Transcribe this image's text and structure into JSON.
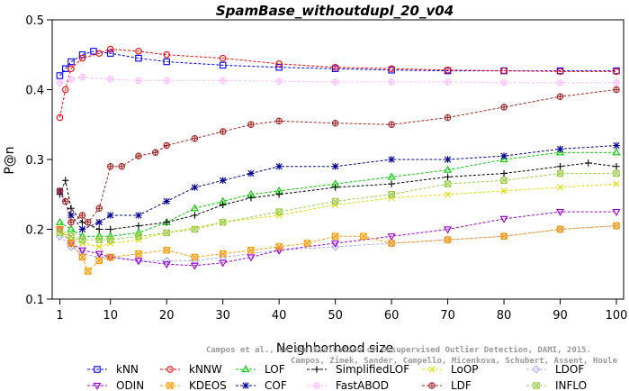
{
  "chart_data": {
    "type": "line",
    "title": "SpamBase_withoutdupl_20_v04",
    "xlabel": "Neighborhood size",
    "ylabel": "P@n",
    "xlim": [
      1,
      100
    ],
    "ylim": [
      0.1,
      0.5
    ],
    "xticks": [
      "1",
      "10",
      "20",
      "30",
      "40",
      "50",
      "60",
      "70",
      "80",
      "90",
      "100"
    ],
    "yticks": [
      "0.1",
      "0.2",
      "0.3",
      "0.4",
      "0.5"
    ],
    "legend_position": "bottom",
    "credit": [
      "Campos et al., On the Evaluation of Unsupervised Outlier Detection, DAMI, 2015.",
      "Campos, Zimek, Sander, Campello, Micenkova, Schubert, Assent, Houle"
    ],
    "series": [
      {
        "name": "kNN",
        "color": "#0000ff",
        "marker": "square",
        "dashed": true,
        "points": [
          [
            1,
            0.42
          ],
          [
            2,
            0.43
          ],
          [
            3,
            0.44
          ],
          [
            5,
            0.45
          ],
          [
            7,
            0.455
          ],
          [
            10,
            0.452
          ],
          [
            15,
            0.445
          ],
          [
            20,
            0.44
          ],
          [
            30,
            0.435
          ],
          [
            40,
            0.432
          ],
          [
            50,
            0.43
          ],
          [
            60,
            0.428
          ],
          [
            70,
            0.427
          ],
          [
            80,
            0.427
          ],
          [
            90,
            0.427
          ],
          [
            100,
            0.427
          ]
        ]
      },
      {
        "name": "kNNW",
        "color": "#ff0000",
        "marker": "circle",
        "dashed": true,
        "points": [
          [
            1,
            0.36
          ],
          [
            2,
            0.4
          ],
          [
            3,
            0.43
          ],
          [
            5,
            0.445
          ],
          [
            8,
            0.452
          ],
          [
            10,
            0.458
          ],
          [
            15,
            0.455
          ],
          [
            20,
            0.45
          ],
          [
            30,
            0.445
          ],
          [
            40,
            0.437
          ],
          [
            50,
            0.432
          ],
          [
            60,
            0.43
          ],
          [
            70,
            0.428
          ],
          [
            80,
            0.427
          ],
          [
            90,
            0.426
          ],
          [
            100,
            0.426
          ]
        ]
      },
      {
        "name": "LOF",
        "color": "#00cc00",
        "marker": "triangle",
        "dashed": true,
        "points": [
          [
            1,
            0.21
          ],
          [
            3,
            0.2
          ],
          [
            5,
            0.19
          ],
          [
            8,
            0.19
          ],
          [
            10,
            0.19
          ],
          [
            15,
            0.195
          ],
          [
            20,
            0.21
          ],
          [
            25,
            0.23
          ],
          [
            30,
            0.24
          ],
          [
            35,
            0.25
          ],
          [
            40,
            0.255
          ],
          [
            50,
            0.265
          ],
          [
            60,
            0.275
          ],
          [
            70,
            0.285
          ],
          [
            80,
            0.3
          ],
          [
            90,
            0.31
          ],
          [
            100,
            0.31
          ]
        ]
      },
      {
        "name": "SimplifiedLOF",
        "color": "#000000",
        "marker": "plus",
        "dashed": true,
        "points": [
          [
            1,
            0.25
          ],
          [
            2,
            0.27
          ],
          [
            3,
            0.23
          ],
          [
            5,
            0.21
          ],
          [
            8,
            0.2
          ],
          [
            10,
            0.2
          ],
          [
            15,
            0.205
          ],
          [
            20,
            0.21
          ],
          [
            25,
            0.22
          ],
          [
            30,
            0.235
          ],
          [
            35,
            0.245
          ],
          [
            40,
            0.25
          ],
          [
            50,
            0.26
          ],
          [
            60,
            0.265
          ],
          [
            70,
            0.275
          ],
          [
            80,
            0.28
          ],
          [
            90,
            0.29
          ],
          [
            95,
            0.295
          ],
          [
            100,
            0.29
          ]
        ]
      },
      {
        "name": "LoOP",
        "color": "#dddd00",
        "marker": "x",
        "dashed": true,
        "points": [
          [
            1,
            0.2
          ],
          [
            3,
            0.19
          ],
          [
            5,
            0.18
          ],
          [
            8,
            0.175
          ],
          [
            10,
            0.18
          ],
          [
            15,
            0.185
          ],
          [
            20,
            0.195
          ],
          [
            30,
            0.21
          ],
          [
            40,
            0.22
          ],
          [
            50,
            0.235
          ],
          [
            60,
            0.245
          ],
          [
            70,
            0.25
          ],
          [
            80,
            0.255
          ],
          [
            90,
            0.26
          ],
          [
            100,
            0.265
          ]
        ]
      },
      {
        "name": "LDOF",
        "color": "#aaaaff",
        "marker": "diamond",
        "dashed": true,
        "points": [
          [
            1,
            0.19
          ],
          [
            3,
            0.175
          ],
          [
            5,
            0.165
          ],
          [
            8,
            0.16
          ],
          [
            10,
            0.16
          ],
          [
            15,
            0.155
          ],
          [
            20,
            0.155
          ],
          [
            25,
            0.155
          ],
          [
            30,
            0.16
          ],
          [
            40,
            0.17
          ],
          [
            50,
            0.175
          ],
          [
            60,
            0.18
          ],
          [
            70,
            0.185
          ],
          [
            80,
            0.19
          ],
          [
            90,
            0.2
          ],
          [
            100,
            0.205
          ]
        ]
      },
      {
        "name": "ODIN",
        "color": "#9900cc",
        "marker": "triangle-down",
        "dashed": true,
        "points": [
          [
            1,
            0.2
          ],
          [
            3,
            0.18
          ],
          [
            5,
            0.17
          ],
          [
            8,
            0.165
          ],
          [
            10,
            0.16
          ],
          [
            15,
            0.155
          ],
          [
            20,
            0.15
          ],
          [
            25,
            0.148
          ],
          [
            30,
            0.152
          ],
          [
            35,
            0.16
          ],
          [
            40,
            0.17
          ],
          [
            50,
            0.18
          ],
          [
            60,
            0.19
          ],
          [
            70,
            0.2
          ],
          [
            80,
            0.215
          ],
          [
            90,
            0.225
          ],
          [
            100,
            0.225
          ]
        ]
      },
      {
        "name": "KDEOS",
        "color": "#ff9900",
        "marker": "square-x",
        "dashed": true,
        "points": [
          [
            1,
            0.2
          ],
          [
            3,
            0.18
          ],
          [
            5,
            0.16
          ],
          [
            6,
            0.14
          ],
          [
            8,
            0.155
          ],
          [
            10,
            0.16
          ],
          [
            15,
            0.165
          ],
          [
            20,
            0.17
          ],
          [
            25,
            0.16
          ],
          [
            30,
            0.165
          ],
          [
            35,
            0.17
          ],
          [
            40,
            0.175
          ],
          [
            45,
            0.18
          ],
          [
            50,
            0.19
          ],
          [
            55,
            0.19
          ],
          [
            60,
            0.18
          ],
          [
            70,
            0.185
          ],
          [
            80,
            0.19
          ],
          [
            90,
            0.2
          ],
          [
            100,
            0.205
          ]
        ]
      },
      {
        "name": "COF",
        "color": "#000099",
        "marker": "star",
        "dashed": true,
        "points": [
          [
            1,
            0.255
          ],
          [
            3,
            0.22
          ],
          [
            5,
            0.2
          ],
          [
            8,
            0.21
          ],
          [
            10,
            0.22
          ],
          [
            15,
            0.22
          ],
          [
            20,
            0.24
          ],
          [
            25,
            0.26
          ],
          [
            30,
            0.27
          ],
          [
            35,
            0.28
          ],
          [
            40,
            0.29
          ],
          [
            50,
            0.29
          ],
          [
            60,
            0.3
          ],
          [
            70,
            0.3
          ],
          [
            80,
            0.305
          ],
          [
            90,
            0.315
          ],
          [
            100,
            0.32
          ]
        ]
      },
      {
        "name": "FastABOD",
        "color": "#ffbbff",
        "marker": "circle-plus",
        "dashed": true,
        "points": [
          [
            1,
            0.41
          ],
          [
            3,
            0.415
          ],
          [
            5,
            0.418
          ],
          [
            10,
            0.415
          ],
          [
            15,
            0.413
          ],
          [
            20,
            0.413
          ],
          [
            30,
            0.413
          ],
          [
            40,
            0.412
          ],
          [
            50,
            0.411
          ],
          [
            60,
            0.411
          ],
          [
            70,
            0.411
          ],
          [
            80,
            0.41
          ],
          [
            90,
            0.41
          ],
          [
            100,
            0.41
          ]
        ]
      },
      {
        "name": "LDF",
        "color": "#aa2222",
        "marker": "circle-plus",
        "dashed": true,
        "points": [
          [
            1,
            0.255
          ],
          [
            2,
            0.24
          ],
          [
            3,
            0.21
          ],
          [
            5,
            0.22
          ],
          [
            6,
            0.21
          ],
          [
            8,
            0.23
          ],
          [
            10,
            0.29
          ],
          [
            12,
            0.29
          ],
          [
            15,
            0.305
          ],
          [
            18,
            0.31
          ],
          [
            20,
            0.32
          ],
          [
            25,
            0.33
          ],
          [
            30,
            0.34
          ],
          [
            35,
            0.35
          ],
          [
            40,
            0.355
          ],
          [
            50,
            0.352
          ],
          [
            60,
            0.35
          ],
          [
            70,
            0.36
          ],
          [
            80,
            0.375
          ],
          [
            90,
            0.39
          ],
          [
            100,
            0.4
          ]
        ]
      },
      {
        "name": "INFLO",
        "color": "#99cc44",
        "marker": "square-x",
        "dashed": true,
        "points": [
          [
            1,
            0.195
          ],
          [
            3,
            0.19
          ],
          [
            5,
            0.185
          ],
          [
            8,
            0.185
          ],
          [
            10,
            0.185
          ],
          [
            15,
            0.19
          ],
          [
            20,
            0.195
          ],
          [
            25,
            0.2
          ],
          [
            30,
            0.21
          ],
          [
            40,
            0.225
          ],
          [
            50,
            0.24
          ],
          [
            60,
            0.25
          ],
          [
            70,
            0.265
          ],
          [
            80,
            0.27
          ],
          [
            90,
            0.28
          ],
          [
            100,
            0.28
          ]
        ]
      }
    ],
    "legend_order": [
      [
        "kNN",
        "kNNW",
        "LOF",
        "SimplifiedLOF",
        "LoOP",
        "LDOF"
      ],
      [
        "ODIN",
        "KDEOS",
        "COF",
        "FastABOD",
        "LDF",
        "INFLO"
      ]
    ]
  }
}
